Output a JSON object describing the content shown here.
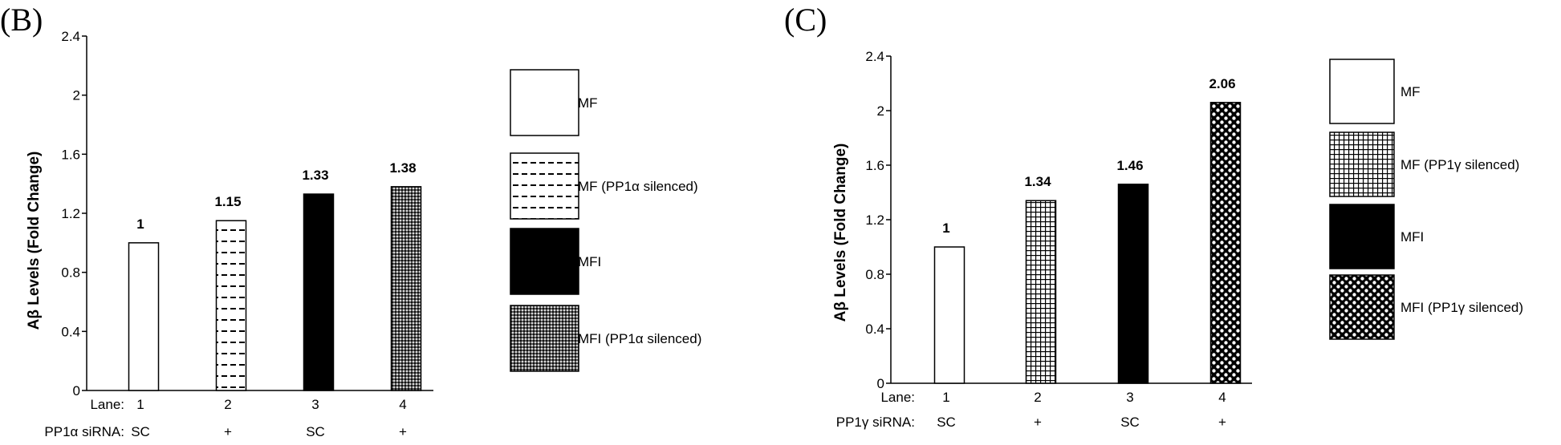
{
  "panels": [
    {
      "panel_label": "(B)",
      "chart_data": {
        "type": "bar",
        "ylabel": "Aβ Levels (Fold Change)",
        "ylim": [
          0,
          2.4
        ],
        "yticks": [
          "0",
          "0.4",
          "0.8",
          "1.2",
          "1.6",
          "2",
          "2.4"
        ],
        "lane_label": "Lane:",
        "lanes": [
          "1",
          "2",
          "3",
          "4"
        ],
        "sirna_label": "PP1α siRNA:",
        "sirna": [
          "SC",
          "+",
          "SC",
          "+"
        ],
        "values": [
          1,
          1.15,
          1.33,
          1.38
        ],
        "value_labels": [
          "1",
          "1.15",
          "1.33",
          "1.38"
        ],
        "fills": [
          "white",
          "dashes",
          "black",
          "dots-dense"
        ],
        "legend": [
          {
            "label": "MF",
            "fill": "white"
          },
          {
            "label": "MF (PP1α silenced)",
            "fill": "dashes"
          },
          {
            "label": "MFI",
            "fill": "black"
          },
          {
            "label": "MFI (PP1α silenced)",
            "fill": "dots-dense"
          }
        ]
      }
    },
    {
      "panel_label": "(C)",
      "chart_data": {
        "type": "bar",
        "ylabel": "Aβ Levels (Fold Change)",
        "ylim": [
          0,
          2.4
        ],
        "yticks": [
          "0",
          "0.4",
          "0.8",
          "1.2",
          "1.6",
          "2",
          "2.4"
        ],
        "lane_label": "Lane:",
        "lanes": [
          "1",
          "2",
          "3",
          "4"
        ],
        "sirna_label": "PP1γ siRNA:",
        "sirna": [
          "SC",
          "+",
          "SC",
          "+"
        ],
        "values": [
          1,
          1.34,
          1.46,
          2.06
        ],
        "value_labels": [
          "1",
          "1.34",
          "1.46",
          "2.06"
        ],
        "fills": [
          "white",
          "grid",
          "black",
          "circles"
        ],
        "legend": [
          {
            "label": "MF",
            "fill": "white"
          },
          {
            "label": "MF (PP1γ silenced)",
            "fill": "grid"
          },
          {
            "label": "MFI",
            "fill": "black"
          },
          {
            "label": "MFI (PP1γ silenced)",
            "fill": "circles"
          }
        ]
      }
    }
  ]
}
